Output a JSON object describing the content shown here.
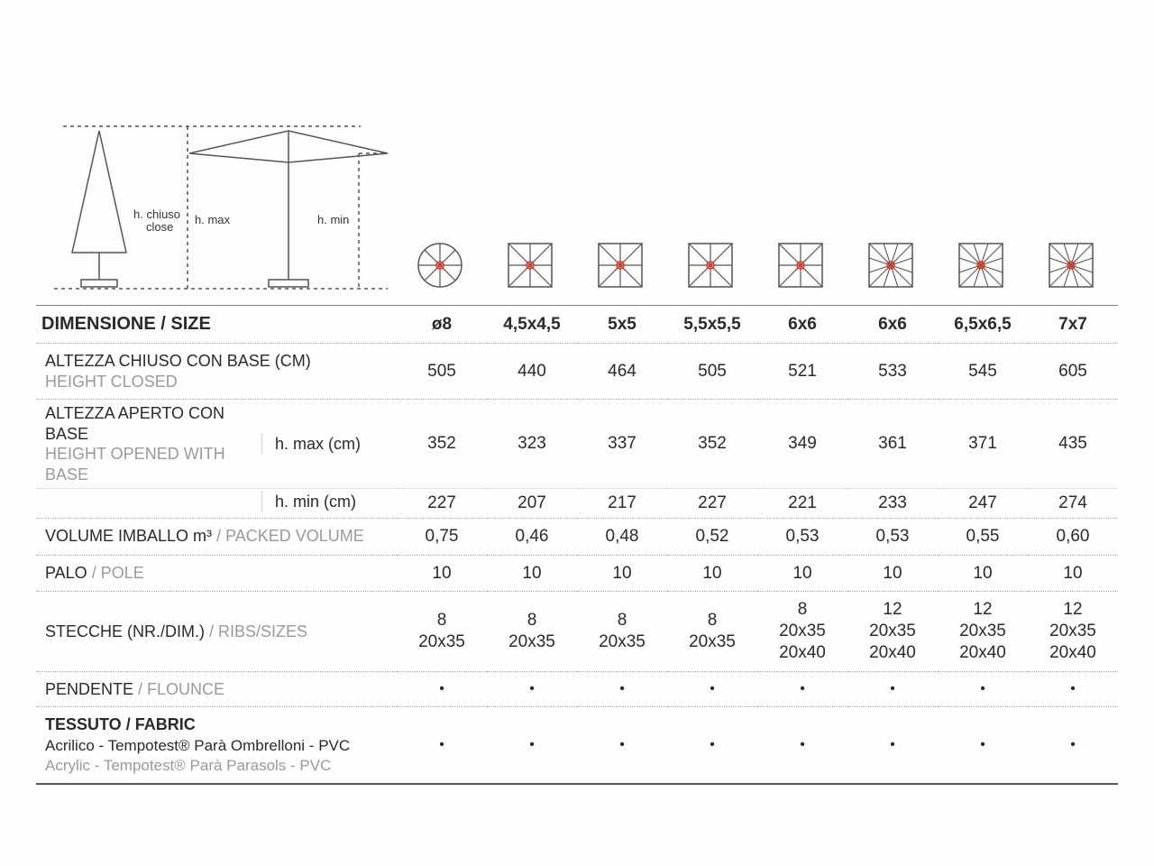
{
  "diagram_labels": {
    "h_chiuso": "h. chiuso",
    "close": "close",
    "h_max": "h. max",
    "h_min": "h. min"
  },
  "colors": {
    "stroke": "#555555",
    "red": "#d43c2e",
    "text": "#2a2a2a",
    "muted": "#9a9a9a",
    "bg": "#fdfdfc"
  },
  "header": {
    "label_it": "DIMENSIONE",
    "label_sep": "  /  ",
    "label_en": "SIZE",
    "sizes": [
      "ø8",
      "4,5x4,5",
      "5x5",
      "5,5x5,5",
      "6x6",
      "6x6",
      "6,5x6,5",
      "7x7"
    ]
  },
  "icons": {
    "types": [
      "circle8",
      "square8",
      "square8",
      "square8",
      "square8",
      "square12",
      "square12",
      "square12"
    ]
  },
  "rows": [
    {
      "id": "height_closed",
      "it": "ALTEZZA CHIUSO CON BASE (CM)",
      "en": "HEIGHT CLOSED",
      "layout": "stack",
      "values": [
        "505",
        "440",
        "464",
        "505",
        "521",
        "533",
        "545",
        "605"
      ]
    },
    {
      "id": "height_open_hmax",
      "it": "ALTEZZA APERTO CON BASE",
      "en": "HEIGHT OPENED WITH BASE",
      "sub": "h. max (cm)",
      "layout": "split",
      "values": [
        "352",
        "323",
        "337",
        "352",
        "349",
        "361",
        "371",
        "435"
      ]
    },
    {
      "id": "height_open_hmin",
      "sub": "h. min (cm)",
      "layout": "split-cont",
      "values": [
        "227",
        "207",
        "217",
        "227",
        "221",
        "233",
        "247",
        "274"
      ]
    },
    {
      "id": "packed_volume",
      "it": "VOLUME IMBALLO m³",
      "en": "PACKED VOLUME",
      "layout": "inline",
      "values": [
        "0,75",
        "0,46",
        "0,48",
        "0,52",
        "0,53",
        "0,53",
        "0,55",
        "0,60"
      ]
    },
    {
      "id": "pole",
      "it": "PALO",
      "en": "POLE",
      "layout": "inline",
      "values": [
        "10",
        "10",
        "10",
        "10",
        "10",
        "10",
        "10",
        "10"
      ]
    },
    {
      "id": "ribs",
      "it": "STECCHE (NR./DIM.)",
      "en": "RIBS/SIZES",
      "layout": "inline",
      "values": [
        "8\n20x35",
        "8\n20x35",
        "8\n20x35",
        "8\n20x35",
        "8\n20x35\n20x40",
        "12\n20x35\n20x40",
        "12\n20x35\n20x40",
        "12\n20x35\n20x40"
      ]
    },
    {
      "id": "flounce",
      "it": "PENDENTE",
      "en": "FLOUNCE",
      "layout": "inline",
      "values": [
        "•",
        "•",
        "•",
        "•",
        "•",
        "•",
        "•",
        "•"
      ]
    },
    {
      "id": "fabric",
      "it": "TESSUTO",
      "en": "FABRIC",
      "it2": "Acrilico - Tempotest® Parà Ombrelloni - PVC",
      "en2": "Acrylic - Tempotest® Parà Parasols - PVC",
      "layout": "fabric",
      "values": [
        "•",
        "•",
        "•",
        "•",
        "•",
        "•",
        "•",
        "•"
      ]
    }
  ]
}
